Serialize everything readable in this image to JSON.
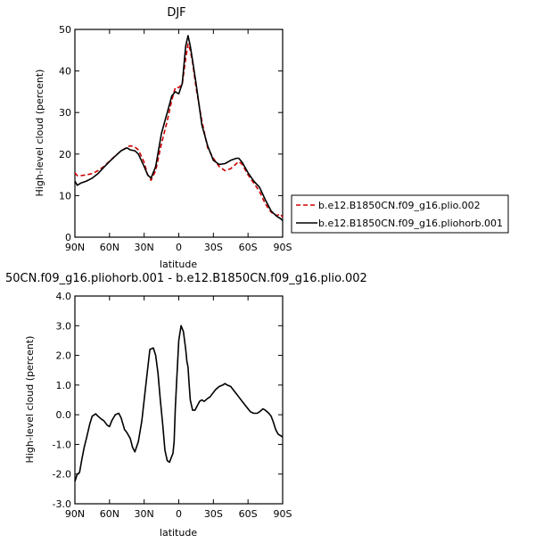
{
  "chart_data": [
    {
      "type": "line",
      "title": "DJF",
      "xlabel": "latitude",
      "ylabel": "High-level cloud (percent)",
      "xlim": [
        90,
        -90
      ],
      "ylim": [
        0,
        50
      ],
      "x_ticks": [
        90,
        60,
        30,
        0,
        -30,
        -60,
        -90
      ],
      "x_tick_labels": [
        "90N",
        "60N",
        "30N",
        "0",
        "30S",
        "60S",
        "90S"
      ],
      "y_ticks": [
        0,
        10,
        20,
        30,
        40,
        50
      ],
      "y_tick_labels": [
        "0",
        "10",
        "20",
        "30",
        "40",
        "50"
      ],
      "grid": false,
      "legend_position": "right",
      "series": [
        {
          "name": "b.e12.B1850CN.f09_g16.plio.002",
          "color": "#cc0000",
          "dash": "dashed",
          "x": [
            90,
            88,
            85,
            80,
            75,
            70,
            65,
            60,
            55,
            50,
            45,
            42,
            38,
            35,
            30,
            27,
            24,
            20,
            15,
            10,
            6,
            3,
            0,
            -3,
            -6,
            -8,
            -10,
            -12,
            -15,
            -20,
            -25,
            -30,
            -35,
            -40,
            -45,
            -50,
            -52,
            -55,
            -60,
            -65,
            -70,
            -75,
            -80,
            -85,
            -88,
            -90
          ],
          "values": [
            15.5,
            14.8,
            14.8,
            15.0,
            15.3,
            16.0,
            17.0,
            18.3,
            19.6,
            20.8,
            21.6,
            22.0,
            21.7,
            21.0,
            18.0,
            15.0,
            13.7,
            16.0,
            22.5,
            28.0,
            33.0,
            36.0,
            36.0,
            36.8,
            43.0,
            46.5,
            45.0,
            42.0,
            36.0,
            28.0,
            21.5,
            19.0,
            17.0,
            16.0,
            16.5,
            17.7,
            18.2,
            17.5,
            15.0,
            13.0,
            11.0,
            8.0,
            6.0,
            5.2,
            5.6,
            4.8
          ]
        },
        {
          "name": "b.e12.B1850CN.f09_g16.pliohorb.001",
          "color": "#000000",
          "dash": "solid",
          "x": [
            90,
            88,
            85,
            80,
            75,
            70,
            65,
            60,
            55,
            50,
            45,
            42,
            38,
            35,
            30,
            27,
            24,
            20,
            15,
            10,
            6,
            3,
            0,
            -3,
            -6,
            -8,
            -10,
            -12,
            -15,
            -20,
            -25,
            -30,
            -35,
            -40,
            -45,
            -50,
            -52,
            -55,
            -60,
            -65,
            -70,
            -75,
            -80,
            -85,
            -88,
            -90
          ],
          "values": [
            13.5,
            12.5,
            13.0,
            13.5,
            14.2,
            15.3,
            16.8,
            18.2,
            19.5,
            20.8,
            21.5,
            21.0,
            20.8,
            20.0,
            17.0,
            15.0,
            14.2,
            17.0,
            25.0,
            30.0,
            34.0,
            35.0,
            34.5,
            37.0,
            46.0,
            48.5,
            46.0,
            42.5,
            37.0,
            27.0,
            22.0,
            18.5,
            17.5,
            17.7,
            18.5,
            19.0,
            19.0,
            18.0,
            15.5,
            13.5,
            12.0,
            9.0,
            6.3,
            5.0,
            4.5,
            4.0
          ]
        }
      ]
    },
    {
      "type": "line",
      "title": "50CN.f09_g16.pliohorb.001 - b.e12.B1850CN.f09_g16.plio.002",
      "xlabel": "latitude",
      "ylabel": "High-level cloud (percent)",
      "xlim": [
        90,
        -90
      ],
      "ylim": [
        -3.0,
        4.0
      ],
      "x_ticks": [
        90,
        60,
        30,
        0,
        -30,
        -60,
        -90
      ],
      "x_tick_labels": [
        "90N",
        "60N",
        "30N",
        "0",
        "30S",
        "60S",
        "90S"
      ],
      "y_ticks": [
        -3,
        -2,
        -1,
        0,
        1,
        2,
        3,
        4
      ],
      "y_tick_labels": [
        "-3.0",
        "-2.0",
        "-1.0",
        "0.0",
        "1.0",
        "2.0",
        "3.0",
        "4.0"
      ],
      "grid": false,
      "series": [
        {
          "color": "#000000",
          "x": [
            90,
            88,
            86,
            84,
            82,
            80,
            77,
            75,
            72,
            70,
            67,
            65,
            62,
            60,
            58,
            55,
            52,
            50,
            47,
            45,
            42,
            40,
            38,
            35,
            32,
            30,
            28,
            25,
            22,
            20,
            18,
            16,
            14,
            12,
            10,
            8,
            6,
            5,
            4,
            3,
            2,
            0,
            -2,
            -4,
            -6,
            -7,
            -8,
            -9,
            -10,
            -12,
            -14,
            -16,
            -18,
            -20,
            -22,
            -25,
            -27,
            -30,
            -32,
            -35,
            -38,
            -40,
            -42,
            -45,
            -48,
            -50,
            -52,
            -55,
            -58,
            -60,
            -62,
            -65,
            -68,
            -70,
            -73,
            -75,
            -78,
            -80,
            -82,
            -84,
            -86,
            -88,
            -90
          ],
          "values": [
            -2.25,
            -2.0,
            -1.95,
            -1.5,
            -1.1,
            -0.8,
            -0.3,
            -0.05,
            0.03,
            -0.05,
            -0.15,
            -0.2,
            -0.35,
            -0.4,
            -0.2,
            0.0,
            0.05,
            -0.1,
            -0.5,
            -0.6,
            -0.8,
            -1.1,
            -1.25,
            -0.9,
            -0.2,
            0.5,
            1.2,
            2.2,
            2.25,
            2.0,
            1.4,
            0.5,
            -0.3,
            -1.2,
            -1.55,
            -1.6,
            -1.4,
            -1.3,
            -0.9,
            0.2,
            1.0,
            2.5,
            3.0,
            2.8,
            2.2,
            1.8,
            1.6,
            1.0,
            0.5,
            0.15,
            0.15,
            0.3,
            0.45,
            0.5,
            0.45,
            0.55,
            0.6,
            0.75,
            0.85,
            0.95,
            1.0,
            1.05,
            1.0,
            0.95,
            0.8,
            0.7,
            0.6,
            0.45,
            0.3,
            0.2,
            0.1,
            0.05,
            0.05,
            0.1,
            0.2,
            0.15,
            0.05,
            -0.05,
            -0.25,
            -0.5,
            -0.65,
            -0.7,
            -0.75
          ]
        }
      ]
    }
  ]
}
